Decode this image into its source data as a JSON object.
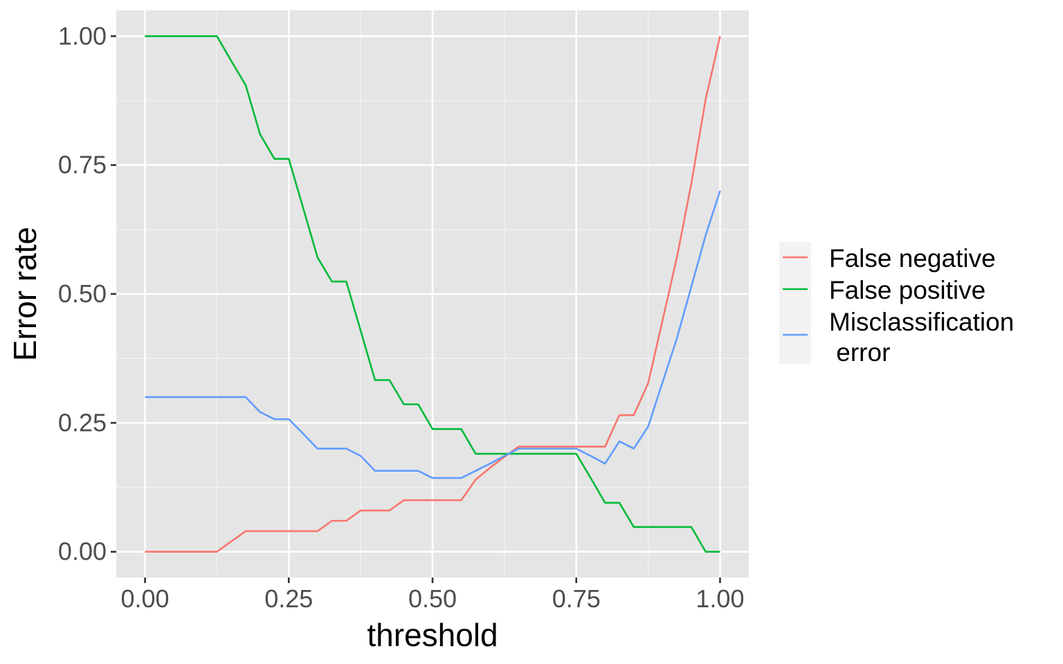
{
  "chart_data": {
    "type": "line",
    "title": "",
    "xlabel": "threshold",
    "ylabel": "Error rate",
    "xlim": [
      -0.05,
      1.05
    ],
    "ylim": [
      -0.05,
      1.05
    ],
    "x_ticks": [
      0,
      0.25,
      0.5,
      0.75,
      1
    ],
    "x_tick_labels": [
      "0.00",
      "0.25",
      "0.50",
      "0.75",
      "1.00"
    ],
    "y_ticks": [
      0,
      0.25,
      0.5,
      0.75,
      1
    ],
    "y_tick_labels": [
      "0.00",
      "0.25",
      "0.50",
      "0.75",
      "1.00"
    ],
    "grid": true,
    "background": "#e5e5e5",
    "legend_position": "right",
    "x": [
      0,
      0.025,
      0.05,
      0.075,
      0.1,
      0.125,
      0.15,
      0.175,
      0.2,
      0.225,
      0.25,
      0.275,
      0.3,
      0.325,
      0.35,
      0.375,
      0.4,
      0.425,
      0.45,
      0.475,
      0.5,
      0.525,
      0.55,
      0.575,
      0.6,
      0.625,
      0.65,
      0.675,
      0.7,
      0.725,
      0.75,
      0.775,
      0.8,
      0.825,
      0.85,
      0.875,
      0.9,
      0.925,
      0.95,
      0.975,
      1
    ],
    "series": [
      {
        "name": "False negative",
        "color": "#f8766d",
        "values": [
          0,
          0,
          0,
          0,
          0,
          0,
          0.02,
          0.04,
          0.04,
          0.04,
          0.04,
          0.04,
          0.04,
          0.06,
          0.06,
          0.08,
          0.08,
          0.08,
          0.1,
          0.1,
          0.1,
          0.1,
          0.1,
          0.14,
          0.163,
          0.184,
          0.204,
          0.204,
          0.204,
          0.204,
          0.204,
          0.204,
          0.204,
          0.265,
          0.265,
          0.327,
          0.449,
          0.571,
          0.714,
          0.878,
          1
        ]
      },
      {
        "name": "False positive",
        "color": "#00ba38",
        "values": [
          1,
          1,
          1,
          1,
          1,
          1,
          0.952,
          0.905,
          0.81,
          0.762,
          0.762,
          0.667,
          0.571,
          0.524,
          0.524,
          0.429,
          0.333,
          0.333,
          0.286,
          0.286,
          0.238,
          0.238,
          0.238,
          0.19,
          0.19,
          0.19,
          0.19,
          0.19,
          0.19,
          0.19,
          0.19,
          0.143,
          0.095,
          0.095,
          0.048,
          0.048,
          0.048,
          0.048,
          0.048,
          0,
          0
        ]
      },
      {
        "name": "Misclassification\n error",
        "color": "#619cff",
        "values": [
          0.3,
          0.3,
          0.3,
          0.3,
          0.3,
          0.3,
          0.3,
          0.3,
          0.271,
          0.257,
          0.257,
          0.229,
          0.2,
          0.2,
          0.2,
          0.186,
          0.157,
          0.157,
          0.157,
          0.157,
          0.143,
          0.143,
          0.143,
          0.157,
          0.171,
          0.186,
          0.2,
          0.2,
          0.2,
          0.2,
          0.2,
          0.186,
          0.171,
          0.214,
          0.2,
          0.243,
          0.329,
          0.414,
          0.514,
          0.614,
          0.7
        ]
      }
    ]
  }
}
